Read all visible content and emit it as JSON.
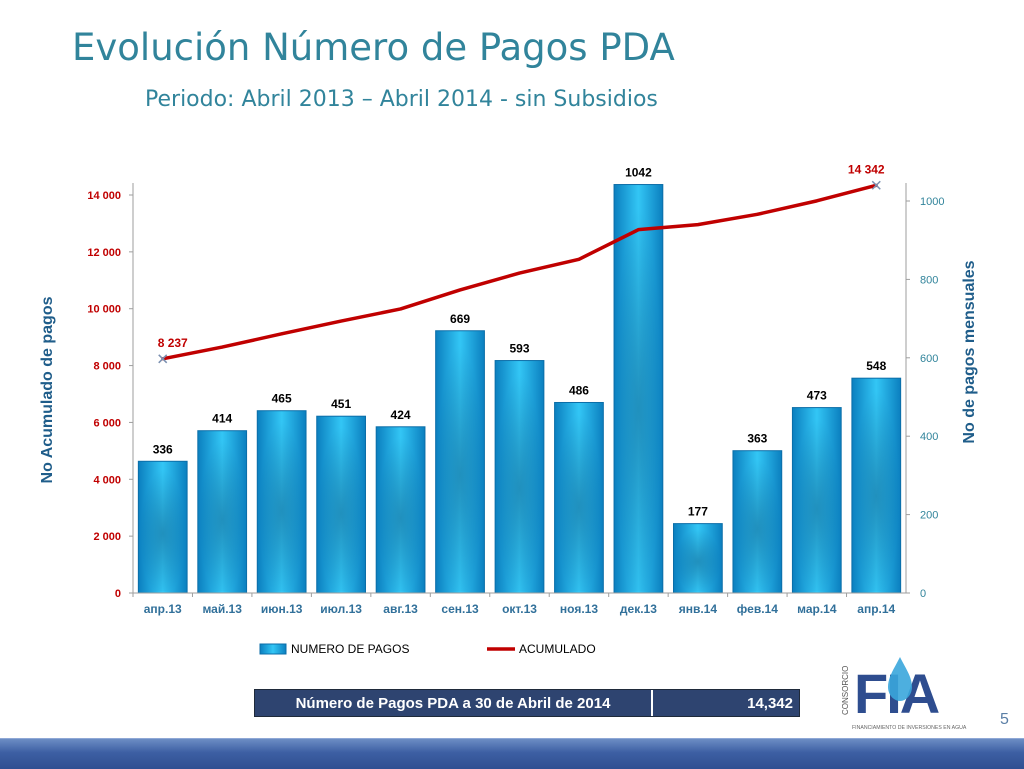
{
  "header": {
    "title": "Evolución Número de Pagos PDA",
    "subtitle": "Periodo: Abril 2013 – Abril 2014 - sin Subsidios"
  },
  "chart_data": {
    "type": "bar",
    "categories": [
      "апр.13",
      "май.13",
      "июн.13",
      "июл.13",
      "авг.13",
      "сен.13",
      "окт.13",
      "ноя.13",
      "дек.13",
      "янв.14",
      "фев.14",
      "мар.14",
      "апр.14"
    ],
    "series": [
      {
        "name": "NUMERO DE PAGOS",
        "type": "bar",
        "axis": "right",
        "color": "#1aa7e0",
        "values": [
          336,
          414,
          465,
          451,
          424,
          669,
          593,
          486,
          1042,
          177,
          363,
          473,
          548
        ]
      },
      {
        "name": "ACUMULADO",
        "type": "line",
        "axis": "left",
        "color": "#c00000",
        "values": [
          8237,
          8651,
          9116,
          9567,
          9991,
          10660,
          11253,
          11739,
          12781,
          12958,
          13321,
          13794,
          14342
        ]
      }
    ],
    "line_labels": [
      {
        "index": 0,
        "text": "8 237"
      },
      {
        "index": 12,
        "text": "14 342"
      }
    ],
    "ylabel": "No Acumulado de pagos",
    "y2label": "No de pagos mensuales",
    "ylim": [
      0,
      14000
    ],
    "y2lim": [
      0,
      1000
    ],
    "yticks": [
      "0",
      "2 000",
      "4 000",
      "6 000",
      "8 000",
      "10 000",
      "12 000",
      "14 000"
    ],
    "y2ticks": [
      "0",
      "200",
      "400",
      "600",
      "800",
      "1000"
    ],
    "legend_position": "bottom",
    "grid": false
  },
  "summary": {
    "label": "Número de Pagos PDA a 30 de Abril de 2014",
    "value": "14,342"
  },
  "logo": {
    "side_text": "CONSORCIO",
    "letters": "FIA",
    "caption": "FINANCIAMIENTO DE INVERSIONES EN AGUA"
  },
  "page_number": "5"
}
